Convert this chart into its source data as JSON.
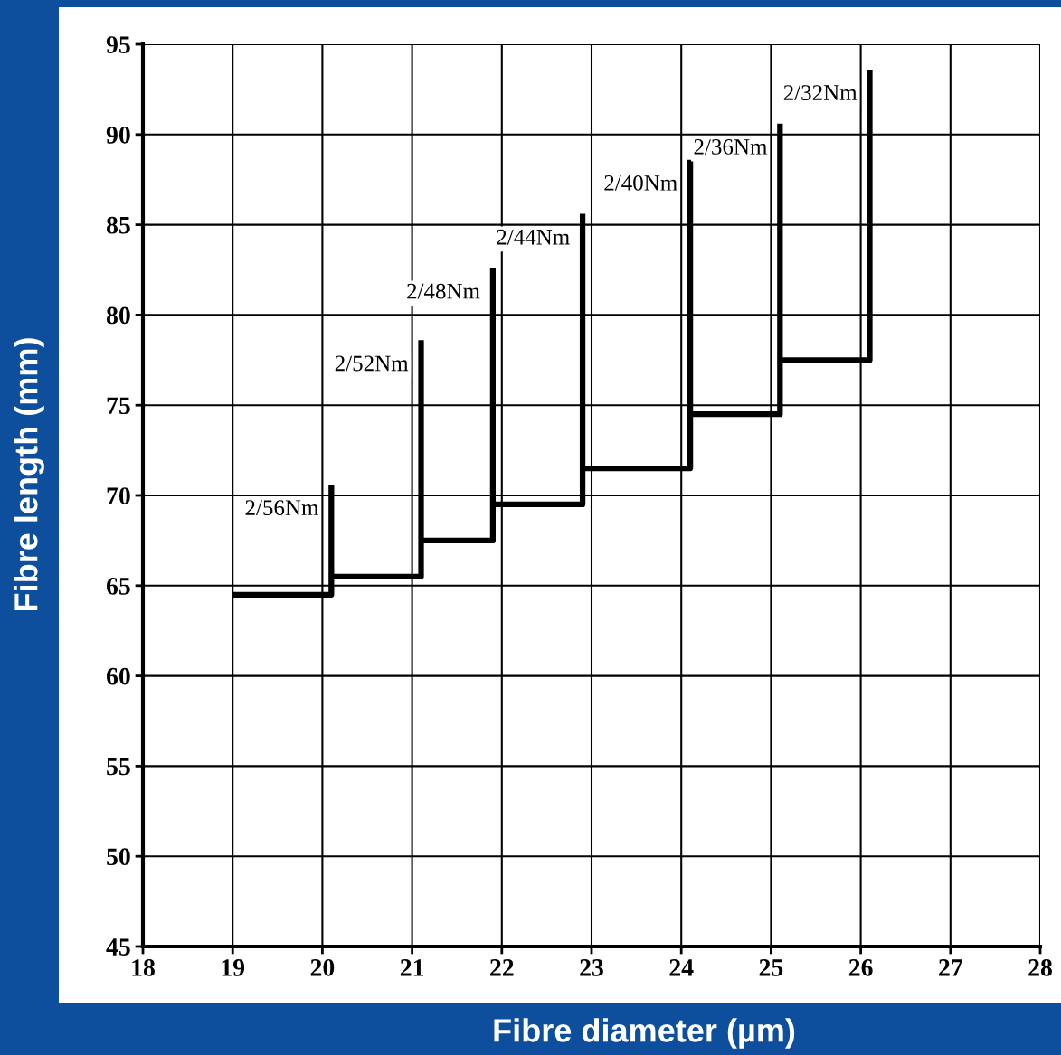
{
  "chart_data": {
    "type": "line",
    "xlabel": "Fibre diameter (µm)",
    "ylabel": "Fibre length (mm)",
    "series": [
      {
        "name": "2/56Nm",
        "color": "#000000",
        "x": [
          19,
          20.1,
          20.1
        ],
        "values": [
          64.5,
          64.5,
          70.6
        ]
      },
      {
        "name": "2/52Nm",
        "color": "#000000",
        "x": [
          20.1,
          21.1,
          21.1
        ],
        "values": [
          65.5,
          65.5,
          78.6
        ]
      },
      {
        "name": "2/48Nm",
        "color": "#000000",
        "x": [
          21.1,
          21.9,
          21.9
        ],
        "values": [
          67.5,
          67.5,
          82.6
        ]
      },
      {
        "name": "2/44Nm",
        "color": "#000000",
        "x": [
          21.9,
          22.9,
          22.9
        ],
        "values": [
          69.5,
          69.5,
          85.6
        ]
      },
      {
        "name": "2/40Nm",
        "color": "#000000",
        "x": [
          22.9,
          24.1,
          24.1
        ],
        "values": [
          71.5,
          71.5,
          88.6
        ]
      },
      {
        "name": "2/36Nm",
        "color": "#000000",
        "x": [
          24.1,
          25.1,
          25.1
        ],
        "values": [
          74.5,
          74.5,
          90.6
        ]
      },
      {
        "name": "2/32Nm",
        "color": "#000000",
        "x": [
          25.1,
          26.1,
          26.1
        ],
        "values": [
          77.5,
          77.5,
          93.6
        ]
      }
    ],
    "xlim": [
      18,
      28
    ],
    "xticks": [
      18,
      19,
      20,
      21,
      22,
      23,
      24,
      25,
      26,
      27,
      28
    ],
    "ylim": [
      45,
      95
    ],
    "yticks": [
      45,
      50,
      55,
      60,
      65,
      70,
      75,
      80,
      85,
      90,
      95
    ],
    "grid": true,
    "marker": "none",
    "line_style": "solid",
    "legend": false
  }
}
